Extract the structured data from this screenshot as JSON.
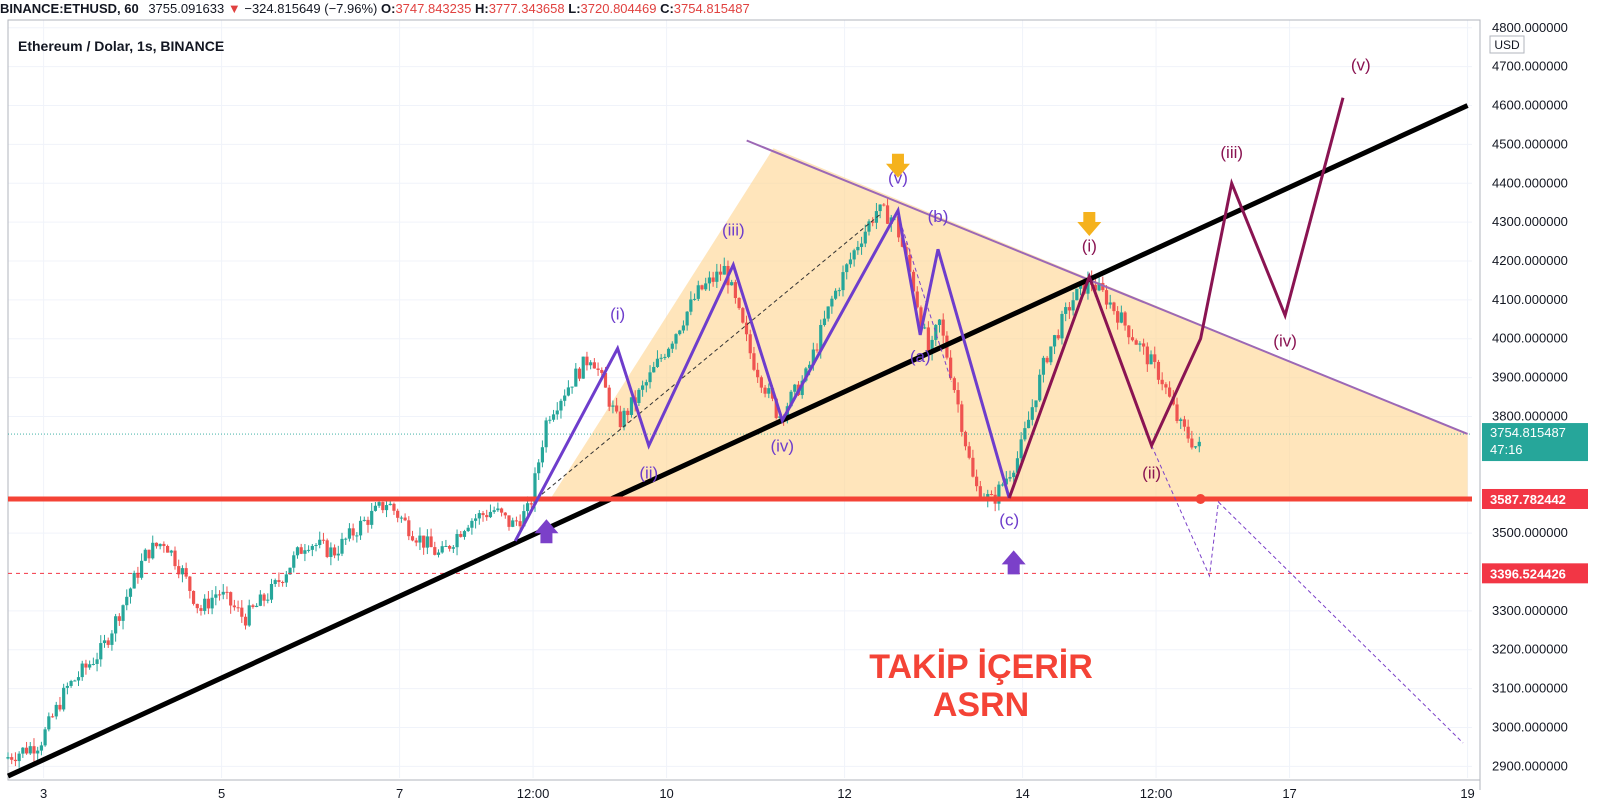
{
  "header": {
    "symbol": "BINANCE:ETHUSD, 60",
    "last": "3755.091633",
    "change": "−324.815649 (−7.96%)",
    "o_label": "O:",
    "o_value": "3747.843235",
    "h_label": "H:",
    "h_value": "3777.343658",
    "l_label": "L:",
    "l_value": "3720.804469",
    "c_label": "C:",
    "c_value": "3754.815487",
    "down_arrow": "▼"
  },
  "chart_data": {
    "type": "candlestick",
    "title": "Ethereum / Dolar, 1s, BINANCE",
    "currency": "USD",
    "x_ticks": [
      {
        "label": "3",
        "x": 3
      },
      {
        "label": "5",
        "x": 5
      },
      {
        "label": "7",
        "x": 7
      },
      {
        "label": "12:00",
        "x": 8.5
      },
      {
        "label": "10",
        "x": 10
      },
      {
        "label": "12",
        "x": 12
      },
      {
        "label": "14",
        "x": 14
      },
      {
        "label": "12:00",
        "x": 15.5
      },
      {
        "label": "17",
        "x": 17
      },
      {
        "label": "19",
        "x": 19
      }
    ],
    "xlim": [
      2.6,
      19.05
    ],
    "ylim": [
      2870,
      4820
    ],
    "y_ticks": [
      {
        "label": "4800.000000",
        "v": 4800
      },
      {
        "label": "4700.000000",
        "v": 4700
      },
      {
        "label": "4600.000000",
        "v": 4600
      },
      {
        "label": "4500.000000",
        "v": 4500
      },
      {
        "label": "4400.000000",
        "v": 4400
      },
      {
        "label": "4300.000000",
        "v": 4300
      },
      {
        "label": "4200.000000",
        "v": 4200
      },
      {
        "label": "4100.000000",
        "v": 4100
      },
      {
        "label": "4000.000000",
        "v": 4000
      },
      {
        "label": "3900.000000",
        "v": 3900
      },
      {
        "label": "3800.000000",
        "v": 3800
      },
      {
        "label": "3500.000000",
        "v": 3500
      },
      {
        "label": "3300.000000",
        "v": 3300
      },
      {
        "label": "3200.000000",
        "v": 3200
      },
      {
        "label": "3100.000000",
        "v": 3100
      },
      {
        "label": "3000.000000",
        "v": 3000
      },
      {
        "label": "2900.000000",
        "v": 2900
      }
    ],
    "grid": true,
    "price_anchors": [
      [
        2.6,
        2920
      ],
      [
        3.0,
        2960
      ],
      [
        3.3,
        3100
      ],
      [
        3.7,
        3200
      ],
      [
        4.0,
        3350
      ],
      [
        4.2,
        3450
      ],
      [
        4.4,
        3480
      ],
      [
        4.6,
        3400
      ],
      [
        4.8,
        3300
      ],
      [
        5.0,
        3350
      ],
      [
        5.3,
        3280
      ],
      [
        5.6,
        3350
      ],
      [
        6.0,
        3480
      ],
      [
        6.3,
        3450
      ],
      [
        6.6,
        3520
      ],
      [
        6.9,
        3580
      ],
      [
        7.2,
        3500
      ],
      [
        7.5,
        3440
      ],
      [
        7.8,
        3530
      ],
      [
        8.1,
        3560
      ],
      [
        8.3,
        3520
      ],
      [
        8.5,
        3560
      ],
      [
        8.7,
        3800
      ],
      [
        9.0,
        3900
      ],
      [
        9.2,
        3960
      ],
      [
        9.5,
        3780
      ],
      [
        9.8,
        3880
      ],
      [
        10.1,
        4000
      ],
      [
        10.4,
        4120
      ],
      [
        10.7,
        4180
      ],
      [
        11.0,
        3950
      ],
      [
        11.3,
        3800
      ],
      [
        11.6,
        3900
      ],
      [
        11.9,
        4100
      ],
      [
        12.2,
        4250
      ],
      [
        12.4,
        4330
      ],
      [
        12.6,
        4310
      ],
      [
        12.8,
        4150
      ],
      [
        13.0,
        3950
      ],
      [
        13.1,
        4050
      ],
      [
        13.3,
        3850
      ],
      [
        13.5,
        3620
      ],
      [
        13.7,
        3580
      ],
      [
        14.0,
        3700
      ],
      [
        14.3,
        3950
      ],
      [
        14.6,
        4100
      ],
      [
        14.8,
        4150
      ],
      [
        15.0,
        4100
      ],
      [
        15.3,
        4000
      ],
      [
        15.6,
        3900
      ],
      [
        15.8,
        3780
      ],
      [
        16.0,
        3720
      ]
    ],
    "current_price": {
      "value": 3754.815487,
      "label": "3754.815487",
      "countdown": "47:16"
    },
    "support": {
      "value": 3587.782442,
      "label": "3587.782442"
    },
    "target": {
      "value": 3396.524426,
      "label": "3396.524426"
    },
    "trendline_black": {
      "p1": [
        2.6,
        2875
      ],
      "p2": [
        19.0,
        4600
      ]
    },
    "trendline_purple": {
      "p1": [
        10.9,
        4510
      ],
      "p2": [
        19.0,
        3755
      ]
    },
    "triangle_fill": [
      [
        8.7,
        3590
      ],
      [
        11.2,
        4490
      ],
      [
        19.0,
        3755
      ],
      [
        19.0,
        3590
      ]
    ],
    "wave_blue": {
      "points": [
        [
          8.3,
          3480
        ],
        [
          9.45,
          3975
        ],
        [
          9.8,
          3725
        ],
        [
          10.75,
          4190
        ],
        [
          11.3,
          3790
        ],
        [
          12.6,
          4330
        ],
        [
          12.85,
          4010
        ],
        [
          13.05,
          4230
        ],
        [
          13.85,
          3590
        ]
      ],
      "labels": [
        {
          "text": "(i)",
          "x": 9.45,
          "y": 4050
        },
        {
          "text": "(ii)",
          "x": 9.8,
          "y": 3640
        },
        {
          "text": "(iii)",
          "x": 10.75,
          "y": 4265
        },
        {
          "text": "(iv)",
          "x": 11.3,
          "y": 3710
        },
        {
          "text": "(v)",
          "x": 12.6,
          "y": 4400
        },
        {
          "text": "(a)",
          "x": 12.85,
          "y": 3940
        },
        {
          "text": "(b)",
          "x": 13.05,
          "y": 4300
        },
        {
          "text": "(c)",
          "x": 13.85,
          "y": 3520
        }
      ]
    },
    "wave_red": {
      "points": [
        [
          13.85,
          3590
        ],
        [
          14.75,
          4160
        ],
        [
          15.45,
          3725
        ],
        [
          16.0,
          4000
        ],
        [
          16.35,
          4400
        ],
        [
          16.95,
          4060
        ],
        [
          17.6,
          4620
        ]
      ],
      "labels": [
        {
          "text": "(i)",
          "x": 14.75,
          "y": 4225
        },
        {
          "text": "(ii)",
          "x": 15.45,
          "y": 3640
        },
        {
          "text": "(iii)",
          "x": 16.35,
          "y": 4465
        },
        {
          "text": "(iv)",
          "x": 16.95,
          "y": 3980
        },
        {
          "text": "(v)",
          "x": 17.8,
          "y": 4690
        }
      ]
    },
    "dashed_paths": [
      [
        [
          8.6,
          3600
        ],
        [
          12.4,
          4320
        ]
      ],
      [
        [
          12.6,
          4320
        ],
        [
          13.2,
          3890
        ]
      ],
      [
        [
          15.45,
          3725
        ],
        [
          16.1,
          3390
        ],
        [
          16.2,
          3580
        ],
        [
          18.95,
          2960
        ]
      ]
    ],
    "markers": [
      {
        "type": "down",
        "x": 12.6,
        "y": 4440,
        "color": "#f5b21d"
      },
      {
        "type": "down",
        "x": 14.75,
        "y": 4290,
        "color": "#f5b21d"
      },
      {
        "type": "up",
        "x": 8.65,
        "y": 3510,
        "color": "#7b40c9"
      },
      {
        "type": "up",
        "x": 13.9,
        "y": 3430,
        "color": "#7b40c9"
      }
    ],
    "annotations": [
      "TAKİP İÇERİR",
      "ASRN"
    ]
  }
}
